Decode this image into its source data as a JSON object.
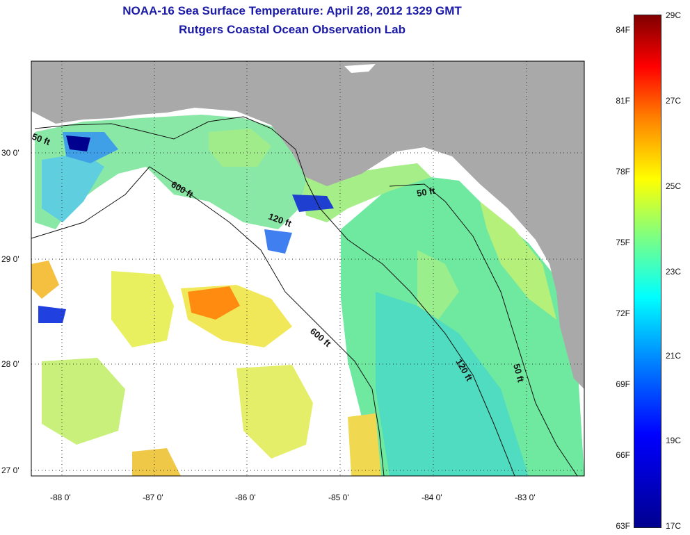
{
  "title_line1": "NOAA-16 Sea Surface Temperature:  April 28, 2012 1329 GMT",
  "title_line2": "Rutgers Coastal Ocean Observation Lab",
  "axes": {
    "longitude_ticks": [
      "-88 0'",
      "-87 0'",
      "-86 0'",
      "-85 0'",
      "-84 0'",
      "-83 0'"
    ],
    "latitude_ticks": [
      "30 0'",
      "29 0'",
      "28 0'",
      "27 0'"
    ]
  },
  "contour_labels": [
    "50 ft",
    "600 ft",
    "120 ft",
    "600 ft",
    "50 ft",
    "120 ft",
    "50 ft"
  ],
  "colorbar": {
    "fahrenheit": [
      "84F",
      "81F",
      "78F",
      "75F",
      "72F",
      "69F",
      "66F",
      "63F"
    ],
    "celsius": [
      "29C",
      "27C",
      "25C",
      "23C",
      "21C",
      "19C",
      "17C"
    ],
    "colors": [
      "#00008f",
      "#0000ff",
      "#0080ff",
      "#00ffff",
      "#80ff80",
      "#ffff00",
      "#ff8000",
      "#ff0000",
      "#800000"
    ]
  },
  "land_color": "#a9a9a9",
  "cloud_color": "#ffffff"
}
